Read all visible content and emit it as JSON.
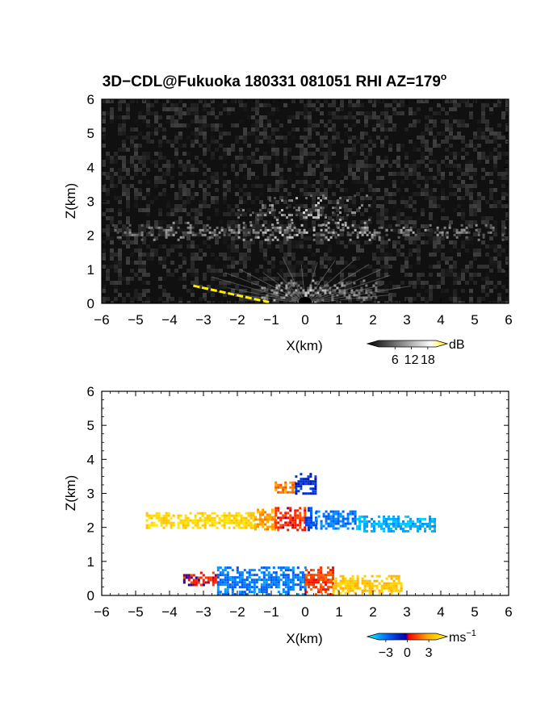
{
  "title": "3D−CDL@Fukuoka 180331 081051 RHI AZ=179",
  "title_sup": "o",
  "chart_data": [
    {
      "type": "heatmap",
      "name": "reflectivity",
      "xlabel": "X(km)",
      "ylabel": "Z(km)",
      "xlim": [
        -6,
        6
      ],
      "ylim": [
        0,
        6
      ],
      "x_ticks": [
        "−6",
        "−5",
        "−4",
        "−3",
        "−2",
        "−1",
        "0",
        "1",
        "2",
        "3",
        "4",
        "5",
        "6"
      ],
      "y_ticks": [
        "0",
        "1",
        "2",
        "3",
        "4",
        "5",
        "6"
      ],
      "background": "#101010",
      "layers": [
        {
          "z_center": 2.15,
          "z_halfwidth": 0.25,
          "x_from": -5.7,
          "x_to": 6.0,
          "intensity": 0.55
        },
        {
          "z_center": 2.75,
          "z_halfwidth": 0.45,
          "x_from": -2.0,
          "x_to": 2.0,
          "intensity": 0.35
        },
        {
          "z_center": 0.35,
          "z_halfwidth": 0.35,
          "x_from": -1.3,
          "x_to": 2.2,
          "intensity": 0.6
        }
      ],
      "ground_clutter_color": "#ffee00",
      "colorbar": {
        "unit": "dB",
        "ticks": [
          "6",
          "12",
          "18"
        ],
        "ticks_values": [
          6,
          12,
          18
        ],
        "range": [
          0,
          21
        ],
        "colors": [
          "#000000",
          "#ffffff",
          "#ffee00"
        ]
      }
    },
    {
      "type": "heatmap",
      "name": "doppler-velocity",
      "xlabel": "X(km)",
      "ylabel": "Z(km)",
      "xlim": [
        -6,
        6
      ],
      "ylim": [
        0,
        6
      ],
      "x_ticks": [
        "−6",
        "−5",
        "−4",
        "−3",
        "−2",
        "−1",
        "0",
        "1",
        "2",
        "3",
        "4",
        "5",
        "6"
      ],
      "y_ticks": [
        "0",
        "1",
        "2",
        "3",
        "4",
        "5",
        "6"
      ],
      "background": "#ffffff",
      "regions": [
        {
          "x_from": -4.7,
          "x_to": -1.5,
          "z_from": 2.0,
          "z_to": 2.45,
          "velocity": 3.0
        },
        {
          "x_from": -1.5,
          "x_to": -0.9,
          "z_from": 1.95,
          "z_to": 2.55,
          "velocity": 2.0
        },
        {
          "x_from": -0.9,
          "x_to": 0.0,
          "z_from": 1.95,
          "z_to": 2.6,
          "velocity": 0.6
        },
        {
          "x_from": 0.0,
          "x_to": 0.3,
          "z_from": 1.95,
          "z_to": 2.6,
          "velocity": -1.5
        },
        {
          "x_from": 0.3,
          "x_to": 1.5,
          "z_from": 2.0,
          "z_to": 2.5,
          "velocity": -2.2
        },
        {
          "x_from": 1.5,
          "x_to": 3.8,
          "z_from": 1.9,
          "z_to": 2.35,
          "velocity": -3.0
        },
        {
          "x_from": -0.9,
          "x_to": -0.3,
          "z_from": 3.0,
          "z_to": 3.35,
          "velocity": 1.5
        },
        {
          "x_from": -0.3,
          "x_to": 0.3,
          "z_from": 3.0,
          "z_to": 3.6,
          "velocity": -1.0
        },
        {
          "x_from": -3.6,
          "x_to": -2.6,
          "z_from": 0.3,
          "z_to": 0.7,
          "velocity": 0.4
        },
        {
          "x_from": -2.6,
          "x_to": 0.0,
          "z_from": 0.05,
          "z_to": 0.85,
          "velocity": -2.2
        },
        {
          "x_from": 0.0,
          "x_to": 0.8,
          "z_from": 0.05,
          "z_to": 0.85,
          "velocity": 0.8
        },
        {
          "x_from": 0.8,
          "x_to": 2.8,
          "z_from": 0.05,
          "z_to": 0.6,
          "velocity": 2.6
        }
      ],
      "colorbar": {
        "unit": "ms",
        "unit_sup": "−1",
        "ticks": [
          "−3",
          "0",
          "3"
        ],
        "ticks_values": [
          -3,
          0,
          3
        ],
        "range": [
          -4,
          4
        ],
        "colors": [
          "#00ffff",
          "#0066ff",
          "#0000aa",
          "#ff0000",
          "#ffaa00",
          "#ffff00"
        ]
      }
    }
  ]
}
